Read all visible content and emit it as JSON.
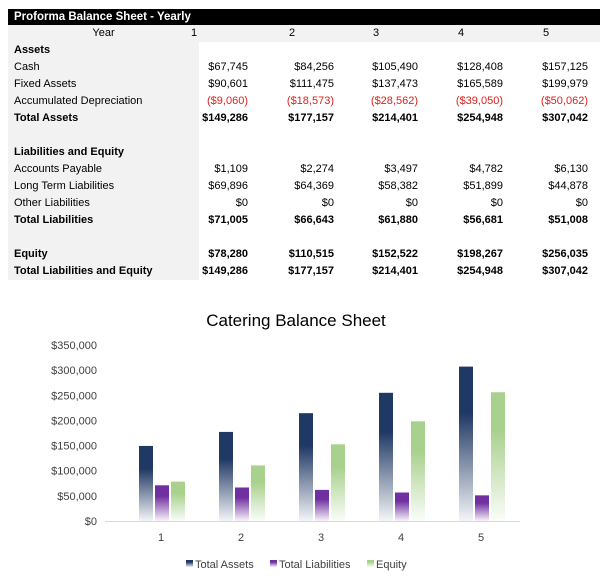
{
  "table": {
    "title": "Proforma Balance Sheet - Yearly",
    "year_label": "Year",
    "years": [
      "1",
      "2",
      "3",
      "4",
      "5"
    ],
    "rows": [
      {
        "label": "Assets",
        "bold": true,
        "values": []
      },
      {
        "label": "Cash",
        "values": [
          "$67,745",
          "$84,256",
          "$105,490",
          "$128,408",
          "$157,125"
        ]
      },
      {
        "label": "Fixed Assets",
        "values": [
          "$90,601",
          "$111,475",
          "$137,473",
          "$165,589",
          "$199,979"
        ]
      },
      {
        "label": "Accumulated Depreciation",
        "negative": true,
        "values": [
          "($9,060)",
          "($18,573)",
          "($28,562)",
          "($39,050)",
          "($50,062)"
        ]
      },
      {
        "label": "Total Assets",
        "bold": true,
        "values": [
          "$149,286",
          "$177,157",
          "$214,401",
          "$254,948",
          "$307,042"
        ]
      },
      {
        "label": "",
        "values": []
      },
      {
        "label": "Liabilities and Equity",
        "bold": true,
        "values": []
      },
      {
        "label": "Accounts Payable",
        "values": [
          "$1,109",
          "$2,274",
          "$3,497",
          "$4,782",
          "$6,130"
        ]
      },
      {
        "label": "Long Term Liabilities",
        "values": [
          "$69,896",
          "$64,369",
          "$58,382",
          "$51,899",
          "$44,878"
        ]
      },
      {
        "label": "Other Liabilities",
        "values": [
          "$0",
          "$0",
          "$0",
          "$0",
          "$0"
        ]
      },
      {
        "label": "Total Liabilities",
        "bold": true,
        "values": [
          "$71,005",
          "$66,643",
          "$61,880",
          "$56,681",
          "$51,008"
        ]
      },
      {
        "label": "",
        "values": []
      },
      {
        "label": "Equity",
        "bold": true,
        "values": [
          "$78,280",
          "$110,515",
          "$152,522",
          "$198,267",
          "$256,035"
        ]
      },
      {
        "label": "Total Liabilities and Equity",
        "bold": true,
        "values": [
          "$149,286",
          "$177,157",
          "$214,401",
          "$254,948",
          "$307,042"
        ]
      }
    ]
  },
  "chart_data": {
    "type": "bar",
    "title": "Catering Balance Sheet",
    "categories": [
      "1",
      "2",
      "3",
      "4",
      "5"
    ],
    "ylim": [
      0,
      350000
    ],
    "yticks": [
      "$0",
      "$50,000",
      "$100,000",
      "$150,000",
      "$200,000",
      "$250,000",
      "$300,000",
      "$350,000"
    ],
    "grid": false,
    "legend": "bottom",
    "series": [
      {
        "name": "Total Assets",
        "color": "#1f3864",
        "values": [
          149286,
          177157,
          214401,
          254948,
          307042
        ]
      },
      {
        "name": "Total Liabilities",
        "color": "#7030a0",
        "values": [
          71005,
          66643,
          61880,
          56681,
          51008
        ]
      },
      {
        "name": "Equity",
        "color": "#a9d18e",
        "values": [
          78280,
          110515,
          152522,
          198267,
          256035
        ]
      }
    ]
  }
}
